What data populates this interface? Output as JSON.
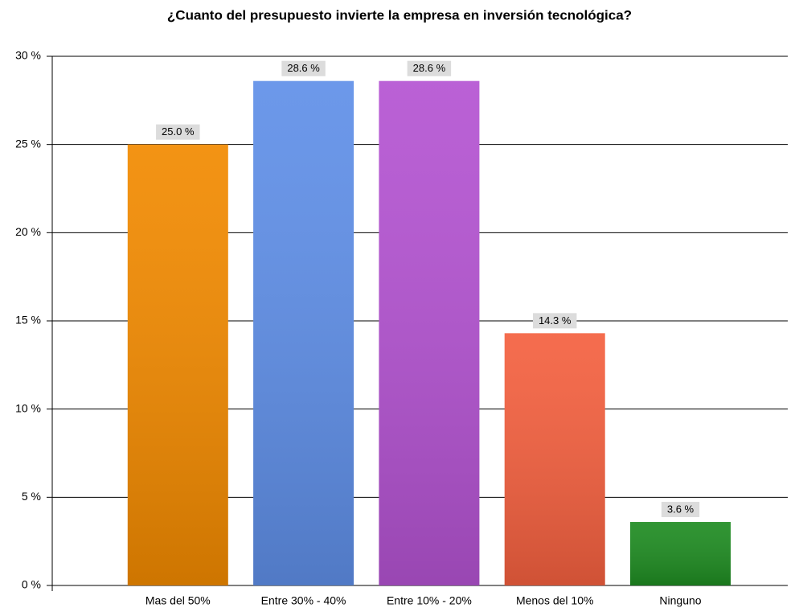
{
  "chart_data": {
    "type": "bar",
    "title": "¿Cuanto del presupuesto invierte la empresa en inversión tecnológica?",
    "categories": [
      "Mas del 50%",
      "Entre 30% - 40%",
      "Entre 10% - 20%",
      "Menos del 10%",
      "Ninguno"
    ],
    "values": [
      25.0,
      28.6,
      28.6,
      14.3,
      3.6
    ],
    "value_labels": [
      "25.0 %",
      "28.6 %",
      "28.6 %",
      "14.3 %",
      "3.6 %"
    ],
    "colors": [
      "#f28a00",
      "#5f8fe8",
      "#b453d2",
      "#f4603f",
      "#1f8c22"
    ],
    "ylim": [
      0,
      30
    ],
    "yticks": [
      {
        "value": 0,
        "label": "0 %"
      },
      {
        "value": 5,
        "label": "5 %"
      },
      {
        "value": 10,
        "label": "10 %"
      },
      {
        "value": 15,
        "label": "15 %"
      },
      {
        "value": 20,
        "label": "20 %"
      },
      {
        "value": 25,
        "label": "25 %"
      },
      {
        "value": 30,
        "label": "30 %"
      }
    ],
    "grid": true
  }
}
